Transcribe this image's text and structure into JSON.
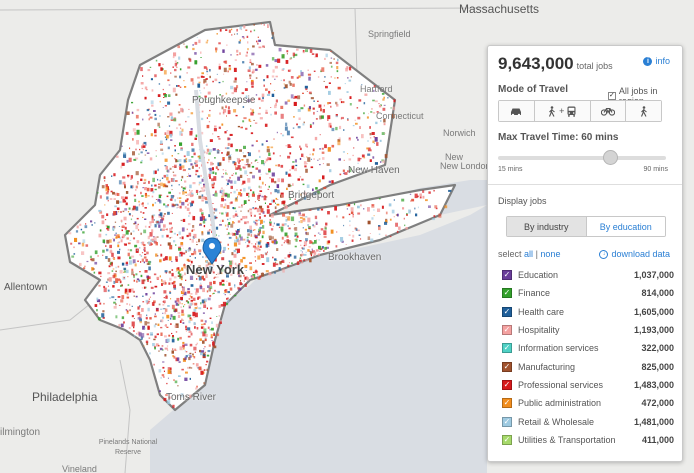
{
  "map": {
    "places": {
      "massachusetts": "Massachusetts",
      "springfield": "Springfield",
      "hartford": "Hartford",
      "connecticut": "Connecticut",
      "norwich": "Norwich",
      "new_london": "New London",
      "poughkeepsie": "Poughkeepsie",
      "new_haven": "New Haven",
      "bridgeport": "Bridgeport",
      "new_york": "New York",
      "brookhaven": "Brookhaven",
      "allentown": "Allentown",
      "philadelphia": "Philadelphia",
      "toms_river": "Toms River",
      "ilmington": "ilmington",
      "pinelands": "Pinelands National Reserve",
      "vineland": "Vineland"
    },
    "marker_icon": "location-pin-icon"
  },
  "panel": {
    "total_jobs": "9,643,000",
    "total_label": "total jobs",
    "info_label": "info",
    "mode_title": "Mode of Travel",
    "all_jobs_label": "All jobs in region",
    "all_jobs_checked": true,
    "modes": [
      {
        "name": "car",
        "icon": "car-icon"
      },
      {
        "name": "walk-transit",
        "icon": "walk-transit-icon",
        "plus": "+"
      },
      {
        "name": "bike",
        "icon": "bike-icon"
      },
      {
        "name": "walk",
        "icon": "walk-icon"
      }
    ],
    "travel_time_title": "Max Travel Time: 60 mins",
    "travel_time_value": 60,
    "slider_min": "15 mins",
    "slider_max": "90 mins",
    "display_title": "Display jobs",
    "tab_industry": "By industry",
    "tab_education": "By education",
    "select_prefix": "select",
    "select_all": "all",
    "select_sep": "|",
    "select_none": "none",
    "download_label": "download data",
    "industries": [
      {
        "label": "Education",
        "value": "1,037,000",
        "color": "#6a3d9a"
      },
      {
        "label": "Finance",
        "value": "814,000",
        "color": "#33a02c"
      },
      {
        "label": "Health care",
        "value": "1,605,000",
        "color": "#1f5f9a"
      },
      {
        "label": "Hospitality",
        "value": "1,193,000",
        "color": "#f4a1a0"
      },
      {
        "label": "Information services",
        "value": "322,000",
        "color": "#4fd1c5"
      },
      {
        "label": "Manufacturing",
        "value": "825,000",
        "color": "#a0522d"
      },
      {
        "label": "Professional services",
        "value": "1,483,000",
        "color": "#d7191c"
      },
      {
        "label": "Public administration",
        "value": "472,000",
        "color": "#f28e1e"
      },
      {
        "label": "Retail & Wholesale",
        "value": "1,481,000",
        "color": "#9ecae1"
      },
      {
        "label": "Utilities & Transportation",
        "value": "411,000",
        "color": "#a6d96a"
      }
    ]
  }
}
